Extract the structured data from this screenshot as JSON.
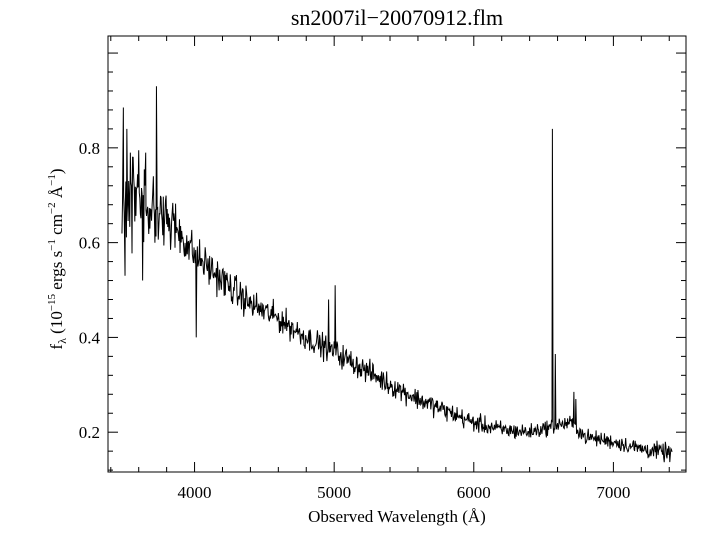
{
  "chart_data": {
    "type": "line",
    "title": "sn2007il−20070912.flm",
    "xlabel": "Observed Wavelength (Å)",
    "ylabel": {
      "symbol": "f",
      "symbol_sub": "λ",
      "prefix": " (10",
      "exp1": "−15",
      "part2": " ergs s",
      "exp2": "−1",
      "part3": " cm",
      "exp3": "−2",
      "part4": " Å",
      "exp4": "−1",
      "suffix": ")"
    },
    "xlim": [
      3380,
      7520
    ],
    "ylim": [
      0.116,
      1.036
    ],
    "x_ticks": [
      4000,
      5000,
      6000,
      7000
    ],
    "x_tick_labels": [
      "4000",
      "5000",
      "6000",
      "7000"
    ],
    "y_ticks": [
      0.2,
      0.4,
      0.6,
      0.8
    ],
    "y_tick_labels": [
      "0.2",
      "0.4",
      "0.6",
      "0.8"
    ],
    "grid": false,
    "legend": "none",
    "line_color": "#000000",
    "series": [
      {
        "x_start": 3480,
        "x_end": 7420,
        "x_step": 4,
        "continuum": [
          [
            3480,
            0.68
          ],
          [
            3600,
            0.68
          ],
          [
            3700,
            0.665
          ],
          [
            3800,
            0.65
          ],
          [
            3900,
            0.62
          ],
          [
            4000,
            0.575
          ],
          [
            4200,
            0.52
          ],
          [
            4400,
            0.47
          ],
          [
            4600,
            0.44
          ],
          [
            4800,
            0.4
          ],
          [
            5000,
            0.37
          ],
          [
            5200,
            0.335
          ],
          [
            5400,
            0.3
          ],
          [
            5600,
            0.27
          ],
          [
            5800,
            0.245
          ],
          [
            6000,
            0.22
          ],
          [
            6200,
            0.205
          ],
          [
            6400,
            0.2
          ],
          [
            6600,
            0.215
          ],
          [
            6700,
            0.22
          ],
          [
            6800,
            0.19
          ],
          [
            7000,
            0.18
          ],
          [
            7200,
            0.165
          ],
          [
            7420,
            0.155
          ]
        ],
        "noise": [
          [
            3480,
            0.06
          ],
          [
            3600,
            0.05
          ],
          [
            3800,
            0.04
          ],
          [
            4000,
            0.025
          ],
          [
            4500,
            0.018
          ],
          [
            5000,
            0.016
          ],
          [
            5500,
            0.014
          ],
          [
            6000,
            0.012
          ],
          [
            6500,
            0.01
          ],
          [
            7000,
            0.01
          ],
          [
            7420,
            0.012
          ]
        ],
        "lines": [
          {
            "x": 3490,
            "y": 0.885
          },
          {
            "x": 3500,
            "y": 0.855
          },
          {
            "x": 3502,
            "y": 0.53
          },
          {
            "x": 3515,
            "y": 0.84
          },
          {
            "x": 3540,
            "y": 0.79
          },
          {
            "x": 3560,
            "y": 0.78
          },
          {
            "x": 3600,
            "y": 0.795
          },
          {
            "x": 3628,
            "y": 0.52
          },
          {
            "x": 3650,
            "y": 0.79
          },
          {
            "x": 3705,
            "y": 0.74
          },
          {
            "x": 3727,
            "y": 0.93
          },
          {
            "x": 4012,
            "y": 0.4
          },
          {
            "x": 4960,
            "y": 0.48
          },
          {
            "x": 5007,
            "y": 0.51
          },
          {
            "x": 6563,
            "y": 0.84
          },
          {
            "x": 6584,
            "y": 0.365
          },
          {
            "x": 6717,
            "y": 0.285
          },
          {
            "x": 6731,
            "y": 0.27
          }
        ]
      }
    ]
  }
}
